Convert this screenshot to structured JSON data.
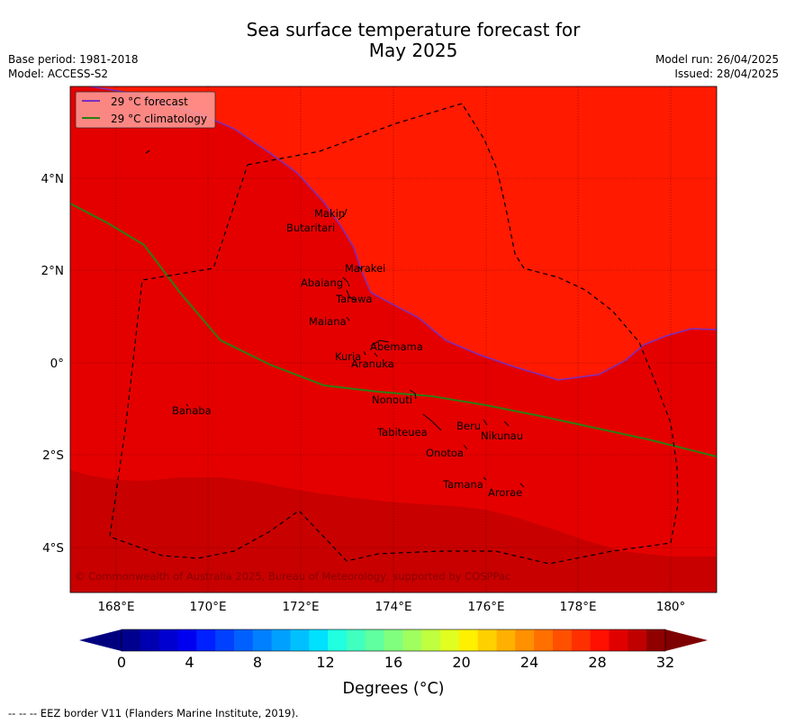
{
  "title": {
    "line1": "Sea surface temperature forecast for",
    "line2": "May 2025"
  },
  "meta_left": {
    "base_period": "Base period: 1981-2018",
    "model": "Model: ACCESS-S2"
  },
  "meta_right": {
    "model_run": "Model run: 26/04/2025",
    "issued": "Issued: 28/04/2025"
  },
  "legend": {
    "forecast_label": "29 °C  forecast",
    "climatology_label": "29 °C  climatology",
    "forecast_color": "#7b2fbe",
    "climatology_color": "#2e7d12"
  },
  "axes": {
    "lon_ticks": [
      "168°E",
      "170°E",
      "172°E",
      "174°E",
      "176°E",
      "178°E",
      "180°"
    ],
    "lat_ticks": [
      "4°N",
      "2°N",
      "0°",
      "2°S",
      "4°S"
    ]
  },
  "places": [
    {
      "name": "Makin"
    },
    {
      "name": "Butaritari"
    },
    {
      "name": "Marakei"
    },
    {
      "name": "Abaiang"
    },
    {
      "name": "Tarawa"
    },
    {
      "name": "Maiana"
    },
    {
      "name": "Abemama"
    },
    {
      "name": "Kuria"
    },
    {
      "name": "Aranuka"
    },
    {
      "name": "Nonouti"
    },
    {
      "name": "Banaba"
    },
    {
      "name": "Beru"
    },
    {
      "name": "Tabiteuea"
    },
    {
      "name": "Nikunau"
    },
    {
      "name": "Onotoa"
    },
    {
      "name": "Tamana"
    },
    {
      "name": "Arorae"
    }
  ],
  "copyright": "© Commonwealth of Australia 2025, Bureau of Meteorology, supported by COSPPac",
  "colorbar": {
    "tick_labels": [
      "0",
      "4",
      "8",
      "12",
      "16",
      "20",
      "24",
      "28",
      "32"
    ],
    "label": "Degrees (°C)",
    "colors": [
      "#00008f",
      "#0000b0",
      "#0000d0",
      "#0000f0",
      "#0020ff",
      "#0040ff",
      "#0060ff",
      "#0080ff",
      "#00a0ff",
      "#00c0ff",
      "#00e0ff",
      "#20ffe0",
      "#40ffbf",
      "#60ff9f",
      "#80ff7f",
      "#a0ff5f",
      "#bfff40",
      "#e0ff20",
      "#fff000",
      "#ffd000",
      "#ffb000",
      "#ff9000",
      "#ff7000",
      "#ff5000",
      "#ff3000",
      "#ff1000",
      "#e00000",
      "#c00000",
      "#900000"
    ],
    "under_color": "#00007f",
    "over_color": "#7f0000"
  },
  "field_colors": {
    "band_29_30": "#ff1a00",
    "band_30_31": "#e50000",
    "band_31_32": "#c80000"
  },
  "footer": "--  --  -- EEZ border V11 (Flanders Marine Institute, 2019)."
}
